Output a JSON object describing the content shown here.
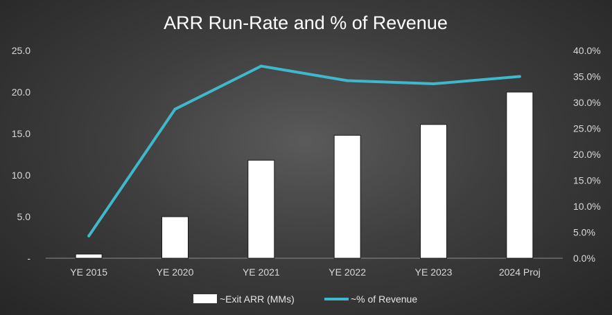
{
  "chart_data": {
    "type": "bar+line",
    "title": "ARR Run-Rate and % of Revenue",
    "categories": [
      "YE 2015",
      "YE 2020",
      "YE 2021",
      "YE 2022",
      "YE 2023",
      "2024 Proj"
    ],
    "series": [
      {
        "name": "~Exit ARR (MMs)",
        "type": "bar",
        "axis": "left",
        "color": "#ffffff",
        "values": [
          0.5,
          5.0,
          11.8,
          14.8,
          16.1,
          20.0
        ]
      },
      {
        "name": "~% of Revenue",
        "type": "line",
        "axis": "right",
        "color": "#3fb8cc",
        "values": [
          4.3,
          28.7,
          37.0,
          34.2,
          33.6,
          35.0
        ]
      }
    ],
    "left_axis": {
      "min": 0,
      "max": 25,
      "step": 5,
      "tick_labels": [
        "-",
        "5.0",
        "10.0",
        "15.0",
        "20.0",
        "25.0"
      ]
    },
    "right_axis": {
      "min": 0,
      "max": 40,
      "step": 5,
      "tick_labels": [
        "0.0%",
        "5.0%",
        "10.0%",
        "15.0%",
        "20.0%",
        "25.0%",
        "30.0%",
        "35.0%",
        "40.0%"
      ]
    },
    "legend_position": "bottom",
    "grid": false
  }
}
